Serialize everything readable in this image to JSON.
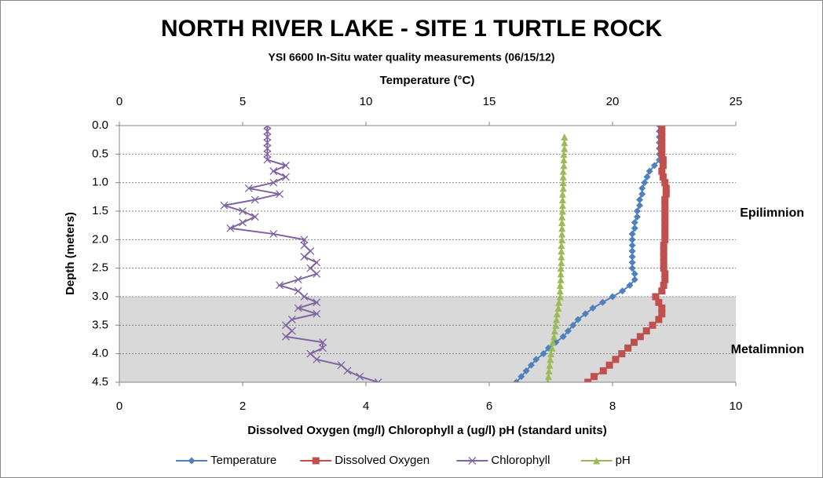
{
  "chart_data": {
    "type": "line",
    "title": "NORTH RIVER LAKE - SITE 1 TURTLE ROCK",
    "subtitle": "YSI 6600 In-Situ water quality measurements (06/15/12)",
    "x2_label": "Temperature (°C)",
    "x_label": "Dissolved Oxygen (mg/l)   Chlorophyll a (ug/l)   pH (standard units)",
    "y_label": "Depth (meters)",
    "annotations": [
      "Epilimnion",
      "Metalimnion"
    ],
    "shaded_range": [
      3,
      4.5
    ],
    "ylim": [
      0,
      4.5
    ],
    "y_inverted": true,
    "yticks": [
      {
        "value": 0,
        "label": "0.0"
      },
      0.5,
      {
        "value": 1,
        "label": "1.0"
      },
      1.5,
      {
        "value": 2,
        "label": "2.0"
      },
      2.5,
      {
        "value": 3,
        "label": "3.0"
      },
      3.5,
      {
        "value": 4,
        "label": "4.0"
      },
      4.5
    ],
    "xlim": [
      0,
      10
    ],
    "xticks": [
      0,
      2,
      4,
      6,
      8,
      10
    ],
    "x2lim": [
      0,
      25
    ],
    "x2ticks": [
      0,
      5,
      10,
      15,
      20,
      25
    ],
    "grid": true,
    "legend": "bottom",
    "y": [
      0,
      0.1,
      0.2,
      0.3,
      0.4,
      0.5,
      0.6,
      0.7,
      0.8,
      0.9,
      1,
      1.1,
      1.2,
      1.3,
      1.4,
      1.5,
      1.6,
      1.7,
      1.8,
      1.9,
      2,
      2.1,
      2.2,
      2.3,
      2.4,
      2.5,
      2.6,
      2.7,
      2.8,
      2.9,
      3,
      3.1,
      3.2,
      3.3,
      3.4,
      3.5,
      3.6,
      3.7,
      3.8,
      3.9,
      4,
      4.1,
      4.2,
      4.3,
      4.4,
      4.5
    ],
    "series": [
      {
        "name": "Temperature",
        "color": "#4f81bd",
        "marker": "diamond",
        "axis": "x2",
        "values": [
          21.9,
          21.9,
          21.9,
          21.9,
          21.9,
          21.9,
          21.9,
          21.7,
          21.5,
          21.4,
          21.3,
          21.2,
          21.2,
          21.1,
          21.1,
          21.0,
          21.0,
          20.9,
          20.9,
          20.8,
          20.8,
          20.8,
          20.8,
          20.8,
          20.8,
          20.8,
          20.9,
          20.9,
          20.7,
          20.4,
          20.0,
          19.6,
          19.2,
          18.9,
          18.6,
          18.4,
          18.2,
          18.0,
          17.7,
          17.4,
          17.2,
          16.9,
          16.7,
          16.5,
          16.3,
          16.1
        ]
      },
      {
        "name": "Dissolved Oxygen",
        "color": "#c0504d",
        "marker": "square",
        "values": [
          8.8,
          8.8,
          8.8,
          8.8,
          8.8,
          8.8,
          8.82,
          8.82,
          8.8,
          8.82,
          8.85,
          8.87,
          8.87,
          8.85,
          8.85,
          8.85,
          8.85,
          8.85,
          8.85,
          8.85,
          8.85,
          8.83,
          8.83,
          8.83,
          8.83,
          8.83,
          8.85,
          8.85,
          8.83,
          8.8,
          8.7,
          8.75,
          8.8,
          8.8,
          8.75,
          8.65,
          8.55,
          8.45,
          8.35,
          8.25,
          8.15,
          8.05,
          7.95,
          7.85,
          7.7,
          7.6
        ]
      },
      {
        "name": "Chlorophyll",
        "color": "#8064a2",
        "marker": "x",
        "values": [
          2.4,
          2.4,
          2.4,
          2.4,
          2.4,
          2.4,
          2.4,
          2.7,
          2.5,
          2.7,
          2.5,
          2.1,
          2.6,
          2.2,
          1.7,
          2.0,
          2.2,
          2.0,
          1.8,
          2.5,
          3.0,
          3.0,
          3.1,
          3.0,
          3.2,
          3.1,
          3.2,
          2.9,
          2.6,
          2.9,
          3.0,
          3.2,
          2.9,
          3.2,
          2.8,
          2.7,
          2.8,
          2.7,
          3.3,
          3.3,
          3.1,
          3.2,
          3.6,
          3.7,
          3.9,
          4.2
        ]
      },
      {
        "name": "pH",
        "color": "#9bbb59",
        "marker": "triangle",
        "values": [
          null,
          null,
          7.22,
          7.22,
          7.22,
          7.21,
          7.21,
          7.21,
          7.2,
          7.2,
          7.2,
          7.2,
          7.19,
          7.19,
          7.19,
          7.19,
          7.18,
          7.18,
          7.18,
          7.18,
          7.18,
          7.17,
          7.17,
          7.17,
          7.17,
          7.16,
          7.16,
          7.16,
          7.15,
          7.15,
          7.15,
          7.13,
          7.12,
          7.1,
          7.09,
          7.08,
          7.06,
          7.05,
          7.03,
          7.02,
          7.0,
          6.99,
          6.98,
          6.97,
          6.96,
          6.95
        ]
      }
    ]
  }
}
